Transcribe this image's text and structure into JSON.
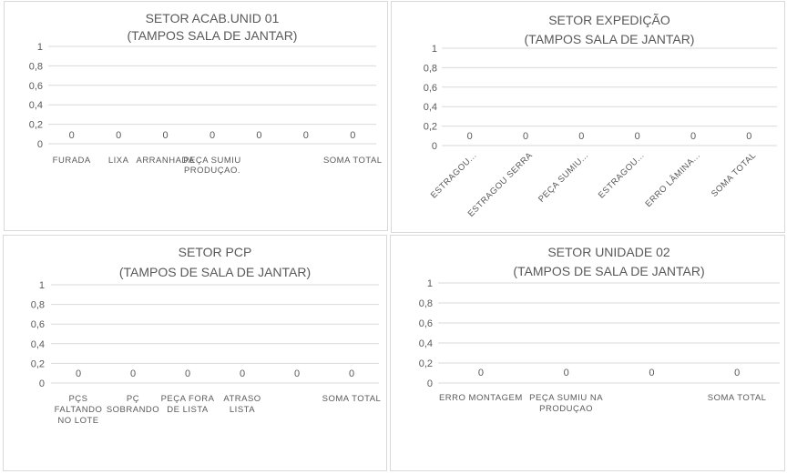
{
  "chart_data": [
    {
      "type": "bar",
      "title": "SETOR ACAB.UNID 01",
      "subtitle": "(TAMPOS SALA DE JANTAR)",
      "categories": [
        [
          "FURADA"
        ],
        [
          "LIXA"
        ],
        [
          "ARRANHADA"
        ],
        [
          "PEÇA SUMIU",
          "PRODUÇAO."
        ],
        [
          ""
        ],
        [
          ""
        ],
        [
          "SOMA TOTAL"
        ]
      ],
      "values": [
        0,
        0,
        0,
        0,
        0,
        0,
        0
      ],
      "yticks": [
        "0",
        "0,2",
        "0,4",
        "0,6",
        "0,8",
        "1"
      ],
      "ylim": [
        0,
        1
      ],
      "grid": true,
      "legend": "none"
    },
    {
      "type": "bar",
      "title": "SETOR EXPEDIÇÃO",
      "subtitle": "(TAMPOS SALA DE JANTAR)",
      "categories": [
        [
          "ESTRAGOU..."
        ],
        [
          "ESTRAGOU SERRA"
        ],
        [
          "PEÇA SUMIU..."
        ],
        [
          "ESTRAGOU..."
        ],
        [
          "ERRO LÂMINA..."
        ],
        [
          "SOMA TOTAL"
        ]
      ],
      "values": [
        0,
        0,
        0,
        0,
        0,
        0
      ],
      "yticks": [
        "0",
        "0,2",
        "0,4",
        "0,6",
        "0,8",
        "1"
      ],
      "ylim": [
        0,
        1
      ],
      "grid": true,
      "legend": "none"
    },
    {
      "type": "bar",
      "title": "SETOR  PCP",
      "subtitle": "(TAMPOS DE SALA DE JANTAR)",
      "categories": [
        [
          "PÇS",
          "FALTANDO",
          "NO LOTE"
        ],
        [
          "PÇ",
          "SOBRANDO"
        ],
        [
          "PEÇA FORA",
          "DE LISTA"
        ],
        [
          "ATRASO",
          "LISTA"
        ],
        [
          ""
        ],
        [
          "SOMA TOTAL"
        ]
      ],
      "values": [
        0,
        0,
        0,
        0,
        0,
        0
      ],
      "yticks": [
        "0",
        "0,2",
        "0,4",
        "0,6",
        "0,8",
        "1"
      ],
      "ylim": [
        0,
        1
      ],
      "grid": true,
      "legend": "none"
    },
    {
      "type": "bar",
      "title": "SETOR  UNIDADE 02",
      "subtitle": "(TAMPOS DE SALA DE JANTAR)",
      "categories": [
        [
          "ERRO MONTAGEM"
        ],
        [
          "PEÇA SUMIU NA",
          "PRODUÇAO"
        ],
        [
          ""
        ],
        [
          "SOMA TOTAL"
        ]
      ],
      "values": [
        0,
        0,
        0,
        0
      ],
      "yticks": [
        "0",
        "0,2",
        "0,4",
        "0,6",
        "0,8",
        "1"
      ],
      "ylim": [
        0,
        1
      ],
      "grid": true,
      "legend": "none"
    }
  ]
}
